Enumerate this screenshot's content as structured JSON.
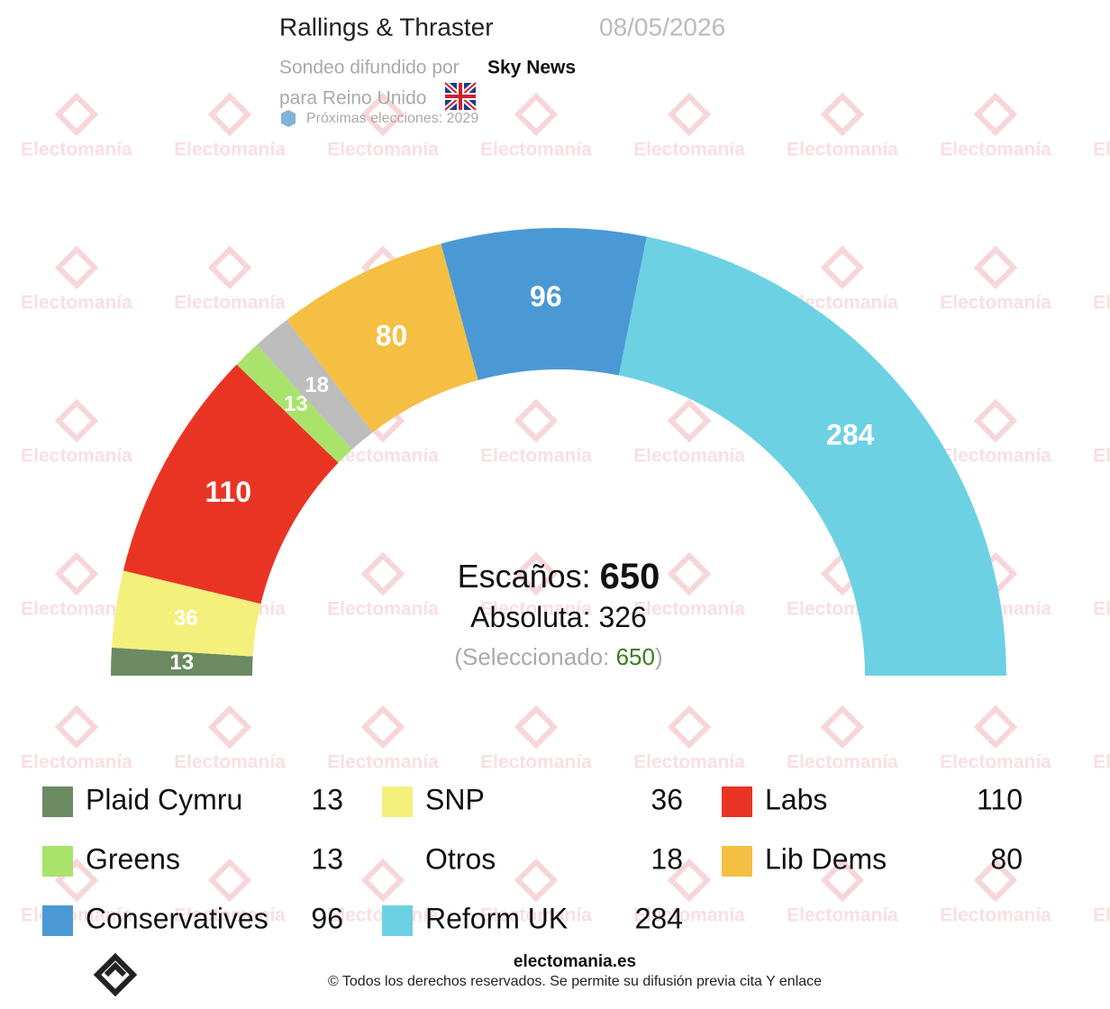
{
  "chart_data": {
    "type": "hemicycle",
    "title": "Rallings & Thraster",
    "date": "08/05/2026",
    "source_label": "Sondeo difundido por",
    "source": "Sky News",
    "region": "para Reino Unido",
    "next_election": "Próximas elecciones: 2029",
    "watermark": "Electomanía",
    "seats_label": "Escaños:",
    "total": 650,
    "majority_label": "Absoluta:",
    "majority": 326,
    "selected_label": "(Seleccionado:",
    "selected": 650,
    "selected_close": ")",
    "series": [
      {
        "name": "Plaid Cymru",
        "color": "#6b8a62",
        "value": 13
      },
      {
        "name": "SNP",
        "color": "#f4f07c",
        "value": 36
      },
      {
        "name": "Labs",
        "color": "#e93424",
        "value": 110
      },
      {
        "name": "Greens",
        "color": "#a9e36c",
        "value": 13
      },
      {
        "name": "Otros",
        "color": "#bdbdbd",
        "value": 18
      },
      {
        "name": "Lib Dems",
        "color": "#f4bf42",
        "value": 80
      },
      {
        "name": "Conservatives",
        "color": "#4a99d4",
        "value": 96
      },
      {
        "name": "Reform UK",
        "color": "#6dd1e4",
        "value": 284
      }
    ],
    "footer_site": "electomania.es",
    "footer_rights": "© Todos los derechos reservados. Se permite su difusión previa cita Y enlace"
  }
}
